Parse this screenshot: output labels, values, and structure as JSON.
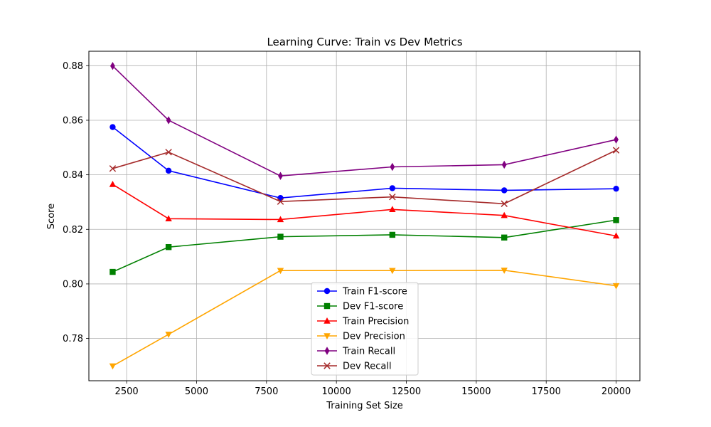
{
  "chart_data": {
    "type": "line",
    "title": "Learning Curve: Train vs Dev Metrics",
    "xlabel": "Training Set Size",
    "ylabel": "Score",
    "xlim": [
      1150,
      20850
    ],
    "ylim": [
      0.7645,
      0.8853
    ],
    "x_ticks": [
      2500,
      5000,
      7500,
      10000,
      12500,
      15000,
      17500,
      20000
    ],
    "y_ticks": [
      0.78,
      0.8,
      0.82,
      0.84,
      0.86,
      0.88
    ],
    "y_tick_labels": [
      "0.78",
      "0.80",
      "0.82",
      "0.84",
      "0.86",
      "0.88"
    ],
    "grid": true,
    "legend_position": "lower-center",
    "x": [
      2000,
      4000,
      8000,
      12000,
      16000,
      20000
    ],
    "series": [
      {
        "name": "Train F1-score",
        "color": "#0000ff",
        "marker": "circle",
        "values": [
          0.8575,
          0.8415,
          0.8315,
          0.8351,
          0.8343,
          0.8349
        ]
      },
      {
        "name": "Dev F1-score",
        "color": "#008000",
        "marker": "square",
        "values": [
          0.8044,
          0.8135,
          0.8173,
          0.818,
          0.817,
          0.8234
        ]
      },
      {
        "name": "Train Precision",
        "color": "#ff0000",
        "marker": "triangle-up",
        "values": [
          0.8365,
          0.8239,
          0.8236,
          0.8273,
          0.8251,
          0.8176
        ]
      },
      {
        "name": "Dev Precision",
        "color": "#ffa500",
        "marker": "triangle-down",
        "values": [
          0.7699,
          0.7815,
          0.8049,
          0.8049,
          0.805,
          0.7993
        ]
      },
      {
        "name": "Train Recall",
        "color": "#800080",
        "marker": "diamond",
        "values": [
          0.8799,
          0.86,
          0.8396,
          0.8429,
          0.8437,
          0.8529
        ]
      },
      {
        "name": "Dev Recall",
        "color": "#a52a2a",
        "marker": "x",
        "values": [
          0.8423,
          0.8483,
          0.8302,
          0.8319,
          0.8294,
          0.849
        ]
      }
    ]
  }
}
